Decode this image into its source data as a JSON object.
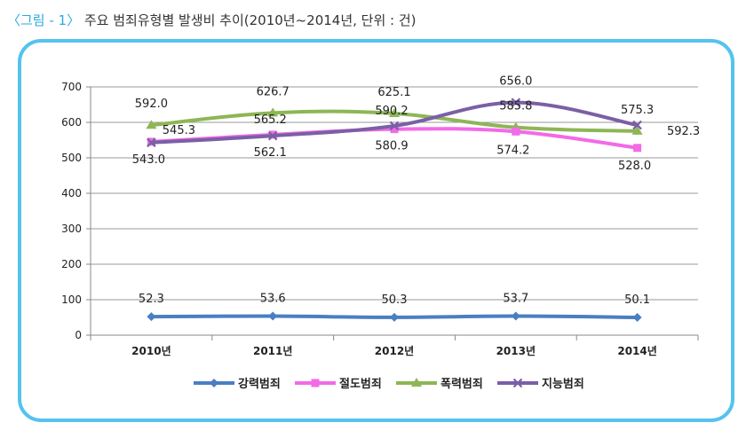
{
  "caption": {
    "label": "〈그림 - 1〉",
    "text": "주요 범죄유형별 발생비 추이(2010년~2014년, 단위 : 건)"
  },
  "chart_data": {
    "type": "line",
    "categories": [
      "2010년",
      "2011년",
      "2012년",
      "2013년",
      "2014년"
    ],
    "ylim": [
      0,
      700
    ],
    "yticks": [
      0,
      100,
      200,
      300,
      400,
      500,
      600,
      700
    ],
    "grid": true,
    "legend": "bottom",
    "series": [
      {
        "name": "강력범죄",
        "color": "#4a7fc1",
        "marker": "diamond",
        "values": [
          52.3,
          53.6,
          50.3,
          53.7,
          50.1
        ],
        "labels": [
          "52.3",
          "53.6",
          "50.3",
          "53.7",
          "50.1"
        ]
      },
      {
        "name": "절도범죄",
        "color": "#f26ae8",
        "marker": "square",
        "values": [
          545.3,
          565.2,
          580.9,
          574.2,
          528.0
        ],
        "labels": [
          "545.3",
          "565.2",
          "580.9",
          "574.2",
          "528.0"
        ]
      },
      {
        "name": "폭력범죄",
        "color": "#8db655",
        "marker": "triangle",
        "values": [
          592.0,
          626.7,
          625.1,
          585.8,
          575.3
        ],
        "labels": [
          "592.0",
          "626.7",
          "625.1",
          "585.8",
          "575.3"
        ]
      },
      {
        "name": "지능범죄",
        "color": "#7b5fa6",
        "marker": "x",
        "values": [
          543.0,
          562.1,
          590.2,
          656.0,
          592.3
        ],
        "labels": [
          "543.0",
          "562.1",
          "590.2",
          "656.0",
          "592.3"
        ]
      }
    ]
  }
}
